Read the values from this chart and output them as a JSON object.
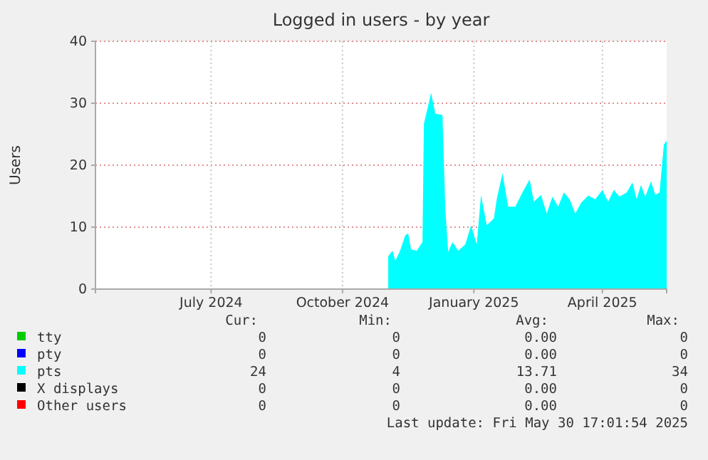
{
  "chart_data": {
    "type": "area",
    "title": "Logged in users - by year",
    "ylabel": "Users",
    "xlim": [
      "2024-04-25",
      "2025-05-30"
    ],
    "xticks": [
      {
        "value": "2024-07-15",
        "label": "July 2024"
      },
      {
        "value": "2024-10-15",
        "label": "October 2024"
      },
      {
        "value": "2025-01-15",
        "label": "January 2025"
      },
      {
        "value": "2025-04-15",
        "label": "April 2025"
      }
    ],
    "ylim": [
      0,
      40
    ],
    "yticks": [
      0,
      10,
      20,
      30,
      40
    ],
    "grid": true,
    "legend": "bottom",
    "series": [
      {
        "name": "tty",
        "color": "#00cc00"
      },
      {
        "name": "pty",
        "color": "#0000ff"
      },
      {
        "name": "pts",
        "color": "#00ffff",
        "x": [
          "2024-11-16",
          "2024-11-19",
          "2024-11-21",
          "2024-11-24",
          "2024-11-28",
          "2024-11-30",
          "2024-12-02",
          "2024-12-06",
          "2024-12-10",
          "2024-12-11",
          "2024-12-15",
          "2024-12-16",
          "2024-12-19",
          "2024-12-24",
          "2024-12-26",
          "2024-12-28",
          "2024-12-31",
          "2025-01-04",
          "2025-01-09",
          "2025-01-13",
          "2025-01-17",
          "2025-01-20",
          "2025-01-24",
          "2025-01-29",
          "2025-01-31",
          "2025-02-04",
          "2025-02-08",
          "2025-02-13",
          "2025-02-18",
          "2025-02-23",
          "2025-02-26",
          "2025-03-03",
          "2025-03-07",
          "2025-03-11",
          "2025-03-15",
          "2025-03-19",
          "2025-03-23",
          "2025-03-27",
          "2025-03-31",
          "2025-04-05",
          "2025-04-10",
          "2025-04-15",
          "2025-04-19",
          "2025-04-23",
          "2025-04-27",
          "2025-05-02",
          "2025-05-06",
          "2025-05-09",
          "2025-05-12",
          "2025-05-15",
          "2025-05-19",
          "2025-05-22",
          "2025-05-25",
          "2025-05-28",
          "2025-05-30"
        ],
        "values": [
          5.3,
          6.2,
          4.6,
          6.0,
          8.7,
          9.0,
          6.4,
          6.2,
          7.6,
          26.7,
          30.6,
          31.7,
          28.3,
          28.1,
          12.9,
          6.0,
          7.6,
          6.2,
          7.2,
          10.3,
          7.2,
          15.2,
          10.3,
          11.4,
          14.5,
          18.7,
          13.3,
          13.3,
          15.6,
          17.7,
          14.1,
          15.2,
          12.2,
          14.9,
          13.3,
          15.6,
          14.5,
          12.2,
          13.9,
          15.1,
          14.5,
          16.0,
          14.1,
          16.0,
          14.9,
          15.6,
          17.2,
          14.5,
          16.8,
          14.9,
          17.4,
          15.2,
          15.6,
          23.3,
          24
        ]
      },
      {
        "name": "X displays",
        "color": "#000000"
      },
      {
        "name": "Other users",
        "color": "#ff0000"
      }
    ],
    "annotations": [
      "Cur:",
      "Min:",
      "Avg:",
      "Max:",
      "0",
      "0",
      "0.00",
      "0",
      "0",
      "0",
      "0.00",
      "0",
      "24",
      "4",
      "13.71",
      "34",
      "0",
      "0",
      "0.00",
      "0",
      "0",
      "0",
      "0.00",
      "0",
      "Last update: Fri May 30 17:01:54 2025"
    ]
  }
}
